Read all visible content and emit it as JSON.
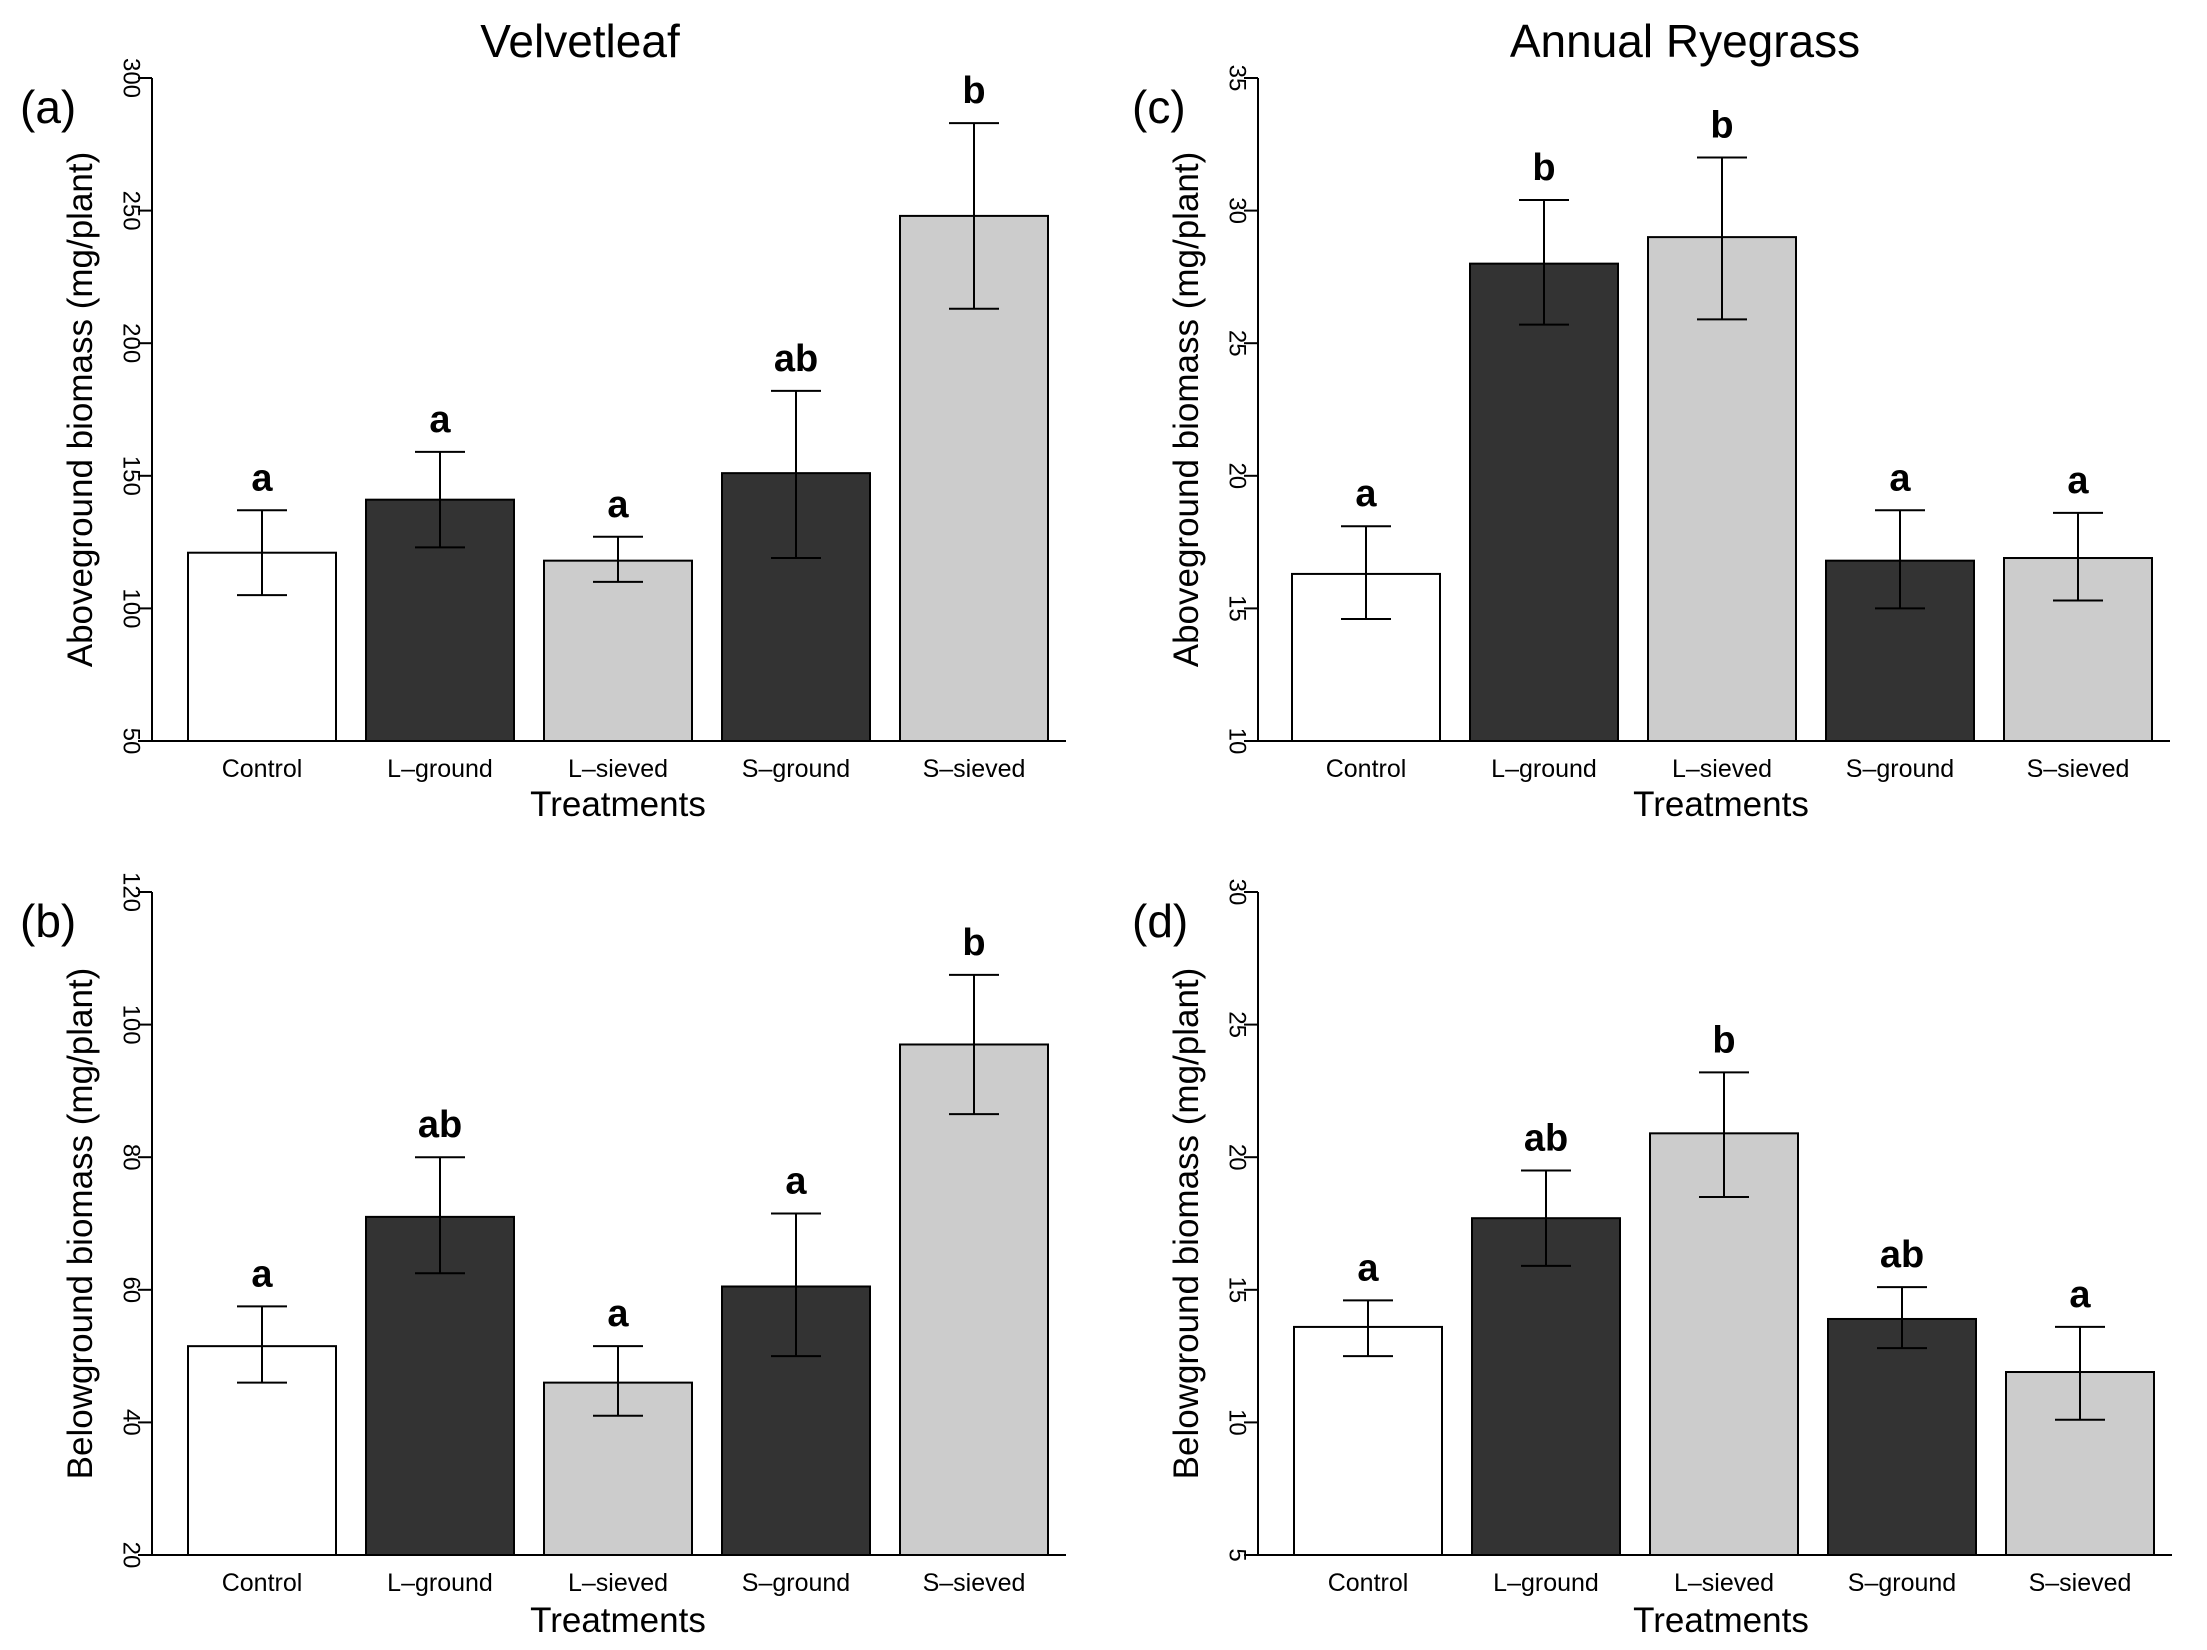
{
  "titles": {
    "left": "Velvetleaf",
    "right": "Annual Ryegrass"
  },
  "colors": {
    "Control": "#ffffff",
    "L-ground": "#333333",
    "L-sieved": "#cccccc",
    "S-ground": "#333333",
    "S-sieved": "#cccccc"
  },
  "chart_data": [
    {
      "type": "bar",
      "panel": "(a)",
      "categories": [
        "Control",
        "L–ground",
        "L–sieved",
        "S–ground",
        "S–sieved"
      ],
      "values": [
        121,
        141,
        118,
        151,
        248
      ],
      "error_low": [
        105,
        123,
        110,
        119,
        213
      ],
      "error_high": [
        137,
        159,
        127,
        182,
        283
      ],
      "significance": [
        "a",
        "a",
        "a",
        "ab",
        "b"
      ],
      "xlabel": "Treatments",
      "ylabel": "Aboveground biomass (mg/plant)",
      "ylim": [
        50,
        300
      ],
      "yticks": [
        50,
        100,
        150,
        200,
        250,
        300
      ]
    },
    {
      "type": "bar",
      "panel": "(b)",
      "categories": [
        "Control",
        "L–ground",
        "L–sieved",
        "S–ground",
        "S–sieved"
      ],
      "values": [
        51.5,
        71,
        46,
        60.5,
        97
      ],
      "error_low": [
        46,
        62.5,
        41,
        50,
        86.5
      ],
      "error_high": [
        57.5,
        80,
        51.5,
        71.5,
        107.5
      ],
      "significance": [
        "a",
        "ab",
        "a",
        "a",
        "b"
      ],
      "xlabel": "Treatments",
      "ylabel": "Belowground biomass (mg/plant)",
      "ylim": [
        20,
        120
      ],
      "yticks": [
        20,
        40,
        60,
        80,
        100,
        120
      ]
    },
    {
      "type": "bar",
      "panel": "(c)",
      "categories": [
        "Control",
        "L–ground",
        "L–sieved",
        "S–ground",
        "S–sieved"
      ],
      "values": [
        16.3,
        28,
        29,
        16.8,
        16.9
      ],
      "error_low": [
        14.6,
        25.7,
        25.9,
        15,
        15.3
      ],
      "error_high": [
        18.1,
        30.4,
        32,
        18.7,
        18.6
      ],
      "significance": [
        "a",
        "b",
        "b",
        "a",
        "a"
      ],
      "xlabel": "Treatments",
      "ylabel": "Aboveground biomass (mg/plant)",
      "ylim": [
        10,
        35
      ],
      "yticks": [
        10,
        15,
        20,
        25,
        30,
        35
      ]
    },
    {
      "type": "bar",
      "panel": "(d)",
      "categories": [
        "Control",
        "L–ground",
        "L–sieved",
        "S–ground",
        "S–sieved"
      ],
      "values": [
        13.6,
        17.7,
        20.9,
        13.9,
        11.9
      ],
      "error_low": [
        12.5,
        15.9,
        18.5,
        12.8,
        10.1
      ],
      "error_high": [
        14.6,
        19.5,
        23.2,
        15.1,
        13.6
      ],
      "significance": [
        "a",
        "ab",
        "b",
        "ab",
        "a"
      ],
      "xlabel": "Treatments",
      "ylabel": "Belowground biomass (mg/plant)",
      "ylim": [
        5,
        30
      ],
      "yticks": [
        5,
        10,
        15,
        20,
        25,
        30
      ]
    }
  ]
}
